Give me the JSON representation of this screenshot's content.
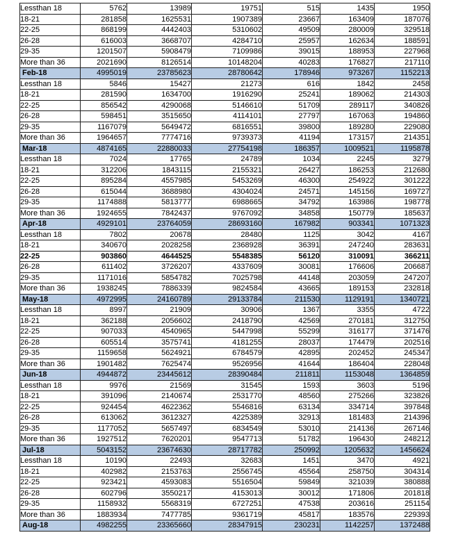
{
  "colors": {
    "month_row_bg": "#b8cce4",
    "border": "#1f1f1f",
    "text": "#000000",
    "page_bg": "#ffffff"
  },
  "table": {
    "rows": [
      {
        "kind": "detail",
        "label": "Lessthan 18",
        "values": [
          5762,
          13989,
          19751,
          515,
          1435,
          1950
        ]
      },
      {
        "kind": "detail",
        "label": "18-21",
        "values": [
          281858,
          1625531,
          1907389,
          23667,
          163409,
          187076
        ]
      },
      {
        "kind": "detail",
        "label": "22-25",
        "values": [
          868199,
          4442403,
          5310602,
          49509,
          280009,
          329518
        ]
      },
      {
        "kind": "detail",
        "label": "26-28",
        "values": [
          616003,
          3668707,
          4284710,
          25957,
          162634,
          188591
        ]
      },
      {
        "kind": "detail",
        "label": "29-35",
        "values": [
          1201507,
          5908479,
          7109986,
          39015,
          188953,
          227968
        ]
      },
      {
        "kind": "detail",
        "label": "More than 36",
        "values": [
          2021690,
          8126514,
          10148204,
          40283,
          176827,
          217110
        ]
      },
      {
        "kind": "month",
        "label": "Feb-18",
        "values": [
          4995019,
          23785623,
          28780642,
          178946,
          973267,
          1152213
        ]
      },
      {
        "kind": "detail",
        "label": "Lessthan 18",
        "values": [
          5846,
          15427,
          21273,
          616,
          1842,
          2458
        ]
      },
      {
        "kind": "detail",
        "label": "18-21",
        "values": [
          281590,
          1634700,
          1916290,
          25241,
          189062,
          214303
        ]
      },
      {
        "kind": "detail",
        "label": "22-25",
        "values": [
          856542,
          4290068,
          5146610,
          51709,
          289117,
          340826
        ]
      },
      {
        "kind": "detail",
        "label": "26-28",
        "values": [
          598451,
          3515650,
          4114101,
          27797,
          167063,
          194860
        ]
      },
      {
        "kind": "detail",
        "label": "29-35",
        "values": [
          1167079,
          5649472,
          6816551,
          39800,
          189280,
          229080
        ]
      },
      {
        "kind": "detail",
        "label": "More than 36",
        "values": [
          1964657,
          7774716,
          9739373,
          41194,
          173157,
          214351
        ]
      },
      {
        "kind": "month",
        "label": "Mar-18",
        "values": [
          4874165,
          22880033,
          27754198,
          186357,
          1009521,
          1195878
        ]
      },
      {
        "kind": "detail",
        "label": "Lessthan 18",
        "values": [
          7024,
          17765,
          24789,
          1034,
          2245,
          3279
        ]
      },
      {
        "kind": "detail",
        "label": "18-21",
        "values": [
          312206,
          1843115,
          2155321,
          26427,
          186253,
          212680
        ]
      },
      {
        "kind": "detail",
        "label": "22-25",
        "values": [
          895284,
          4557985,
          5453269,
          46300,
          254922,
          301222
        ]
      },
      {
        "kind": "detail",
        "label": "26-28",
        "values": [
          615044,
          3688980,
          4304024,
          24571,
          145156,
          169727
        ]
      },
      {
        "kind": "detail",
        "label": "29-35",
        "values": [
          1174888,
          5813777,
          6988665,
          34792,
          163986,
          198778
        ]
      },
      {
        "kind": "detail",
        "label": "More than 36",
        "values": [
          1924655,
          7842437,
          9767092,
          34858,
          150779,
          185637
        ]
      },
      {
        "kind": "month",
        "label": "Apr-18",
        "values": [
          4929101,
          23764059,
          28693160,
          167982,
          903341,
          1071323
        ]
      },
      {
        "kind": "detail",
        "label": "Lessthan 18",
        "values": [
          7802,
          20678,
          28480,
          1125,
          3042,
          4167
        ]
      },
      {
        "kind": "detail",
        "label": "18-21",
        "values": [
          340670,
          2028258,
          2368928,
          36391,
          247240,
          283631
        ]
      },
      {
        "kind": "detail",
        "label": "22-25",
        "bold": true,
        "values": [
          903860,
          4644525,
          5548385,
          56120,
          310091,
          366211
        ]
      },
      {
        "kind": "detail",
        "label": "26-28",
        "values": [
          611402,
          3726207,
          4337609,
          30081,
          176606,
          206687
        ]
      },
      {
        "kind": "detail",
        "label": "29-35",
        "values": [
          1171016,
          5854782,
          7025798,
          44148,
          203059,
          247207
        ]
      },
      {
        "kind": "detail",
        "label": "More than 36",
        "values": [
          1938245,
          7886339,
          9824584,
          43665,
          189153,
          232818
        ]
      },
      {
        "kind": "month",
        "label": "May-18",
        "values": [
          4972995,
          24160789,
          29133784,
          211530,
          1129191,
          1340721
        ]
      },
      {
        "kind": "detail",
        "label": "Lessthan 18",
        "values": [
          8997,
          21909,
          30906,
          1367,
          3355,
          4722
        ]
      },
      {
        "kind": "detail",
        "label": "18-21",
        "values": [
          362188,
          2056602,
          2418790,
          42569,
          270181,
          312750
        ]
      },
      {
        "kind": "detail",
        "label": "22-25",
        "values": [
          907033,
          4540965,
          5447998,
          55299,
          316177,
          371476
        ]
      },
      {
        "kind": "detail",
        "label": "26-28",
        "values": [
          605514,
          3575741,
          4181255,
          28037,
          174479,
          202516
        ]
      },
      {
        "kind": "detail",
        "label": "29-35",
        "values": [
          1159658,
          5624921,
          6784579,
          42895,
          202452,
          245347
        ]
      },
      {
        "kind": "detail",
        "label": "More than 36",
        "values": [
          1901482,
          7625474,
          9526956,
          41644,
          186404,
          228048
        ]
      },
      {
        "kind": "month",
        "label": "Jun-18",
        "values": [
          4944872,
          23445612,
          28390484,
          211811,
          1153048,
          1364859
        ]
      },
      {
        "kind": "detail",
        "label": "Lessthan 18",
        "values": [
          9976,
          21569,
          31545,
          1593,
          3603,
          5196
        ]
      },
      {
        "kind": "detail",
        "label": "18-21",
        "values": [
          391096,
          2140674,
          2531770,
          48560,
          275266,
          323826
        ]
      },
      {
        "kind": "detail",
        "label": "22-25",
        "values": [
          924454,
          4622362,
          5546816,
          63134,
          334714,
          397848
        ]
      },
      {
        "kind": "detail",
        "label": "26-28",
        "values": [
          613062,
          3612327,
          4225389,
          32913,
          181483,
          214396
        ]
      },
      {
        "kind": "detail",
        "label": "29-35",
        "values": [
          1177052,
          5657497,
          6834549,
          53010,
          214136,
          267146
        ]
      },
      {
        "kind": "detail",
        "label": "More than 36",
        "values": [
          1927512,
          7620201,
          9547713,
          51782,
          196430,
          248212
        ]
      },
      {
        "kind": "month",
        "label": "Jul-18",
        "values": [
          5043152,
          23674630,
          28717782,
          250992,
          1205632,
          1456624
        ]
      },
      {
        "kind": "detail",
        "label": "Lessthan 18",
        "values": [
          10190,
          22493,
          32683,
          1451,
          3470,
          4921
        ]
      },
      {
        "kind": "detail",
        "label": "18-21",
        "values": [
          402982,
          2153763,
          2556745,
          45564,
          258750,
          304314
        ]
      },
      {
        "kind": "detail",
        "label": "22-25",
        "values": [
          923421,
          4593083,
          5516504,
          59849,
          321039,
          380888
        ]
      },
      {
        "kind": "detail",
        "label": "26-28",
        "values": [
          602796,
          3550217,
          4153013,
          30012,
          171806,
          201818
        ]
      },
      {
        "kind": "detail",
        "label": "29-35",
        "values": [
          1158932,
          5568319,
          6727251,
          47538,
          203616,
          251154
        ]
      },
      {
        "kind": "detail",
        "label": "More than 36",
        "values": [
          1883934,
          7477785,
          9361719,
          45817,
          183576,
          229393
        ]
      },
      {
        "kind": "month",
        "label": "Aug-18",
        "values": [
          4982255,
          23365660,
          28347915,
          230231,
          1142257,
          1372488
        ]
      }
    ]
  }
}
